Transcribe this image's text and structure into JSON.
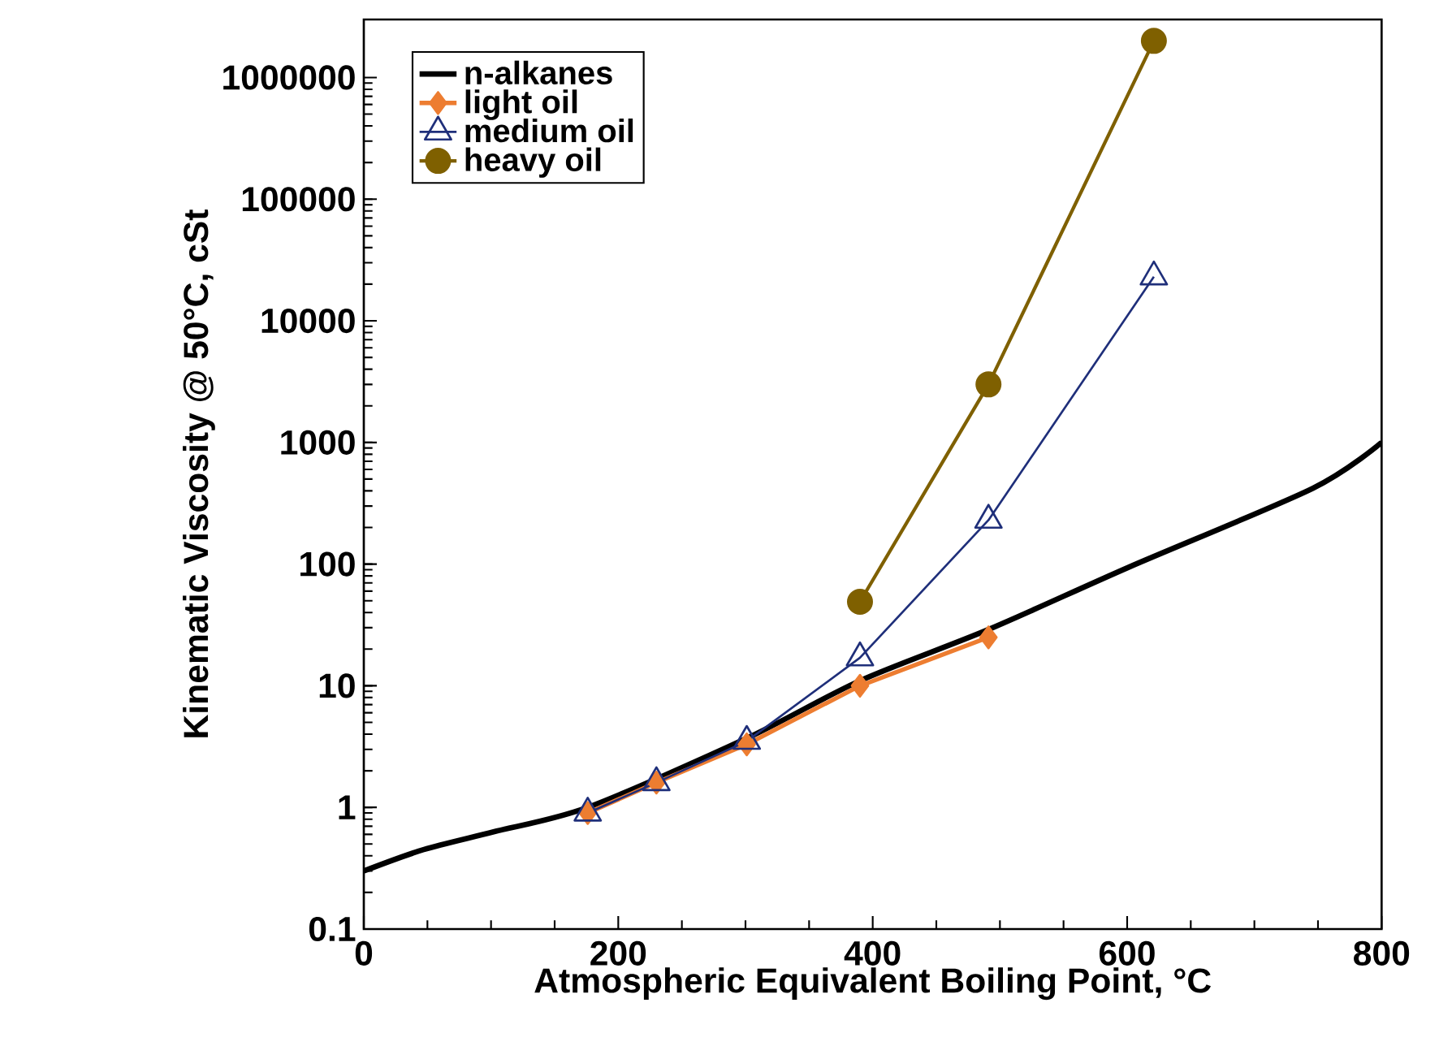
{
  "chart_data": {
    "type": "line",
    "xlabel": "Atmospheric Equivalent Boiling Point, °C",
    "ylabel": "Kinematic Viscosity @ 50°C, cSt",
    "log": "y",
    "legend": "top left",
    "xlim": [
      0,
      800
    ],
    "xticks": [
      0,
      200,
      400,
      600,
      800
    ],
    "ylim": [
      0.1,
      3000000
    ],
    "yticks": [
      0.1,
      1,
      10,
      100,
      1000,
      10000,
      100000,
      1000000
    ],
    "grid": false,
    "series": [
      {
        "name": "n-alkanes",
        "color": "#000000",
        "marker": "none",
        "x": [
          0,
          47,
          102,
          176,
          301,
          390,
          491,
          601,
          746,
          800
        ],
        "values": [
          0.3,
          0.45,
          0.63,
          1.0,
          3.7,
          11,
          29,
          94,
          420,
          1000
        ]
      },
      {
        "name": "light oil",
        "color": "#ed7d31",
        "marker": "diamond",
        "x": [
          176,
          230,
          301,
          390,
          491
        ],
        "values": [
          0.9,
          1.6,
          3.3,
          10,
          25
        ]
      },
      {
        "name": "medium oil",
        "color": "#1f2f7a",
        "marker": "triangle",
        "x": [
          176,
          230,
          301,
          390,
          491,
          621
        ],
        "values": [
          0.9,
          1.6,
          3.5,
          17,
          230,
          23000
        ]
      },
      {
        "name": "heavy oil",
        "color": "#7f6000",
        "marker": "circle",
        "x": [
          390,
          491,
          621
        ],
        "values": [
          49,
          3000,
          2000000
        ]
      }
    ]
  }
}
